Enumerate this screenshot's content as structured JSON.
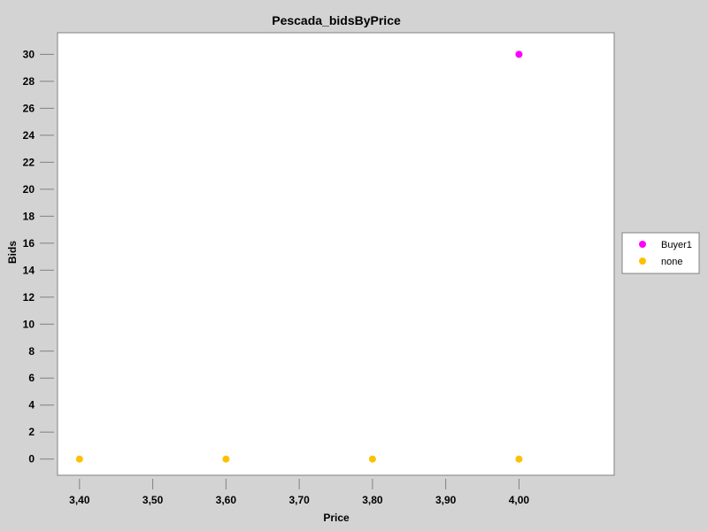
{
  "chart_data": {
    "type": "scatter",
    "title": "Pescada_bidsByPrice",
    "xlabel": "Price",
    "ylabel": "Bids",
    "xlim": [
      3.37,
      4.13
    ],
    "ylim": [
      -1.2,
      31.6
    ],
    "x_ticks": [
      {
        "value": 3.4,
        "label": "3,40"
      },
      {
        "value": 3.5,
        "label": "3,50"
      },
      {
        "value": 3.6,
        "label": "3,60"
      },
      {
        "value": 3.7,
        "label": "3,70"
      },
      {
        "value": 3.8,
        "label": "3,80"
      },
      {
        "value": 3.9,
        "label": "3,90"
      },
      {
        "value": 4.0,
        "label": "4,00"
      }
    ],
    "y_ticks": [
      0,
      2,
      4,
      6,
      8,
      10,
      12,
      14,
      16,
      18,
      20,
      22,
      24,
      26,
      28,
      30
    ],
    "grid": false,
    "legend_position": "right",
    "series": [
      {
        "name": "Buyer1",
        "color": "#ff00ff",
        "points": [
          {
            "x": 4.0,
            "y": 30
          }
        ]
      },
      {
        "name": "none",
        "color": "#ffc000",
        "points": [
          {
            "x": 3.4,
            "y": 0
          },
          {
            "x": 3.6,
            "y": 0
          },
          {
            "x": 3.8,
            "y": 0
          },
          {
            "x": 4.0,
            "y": 0
          }
        ]
      }
    ]
  }
}
